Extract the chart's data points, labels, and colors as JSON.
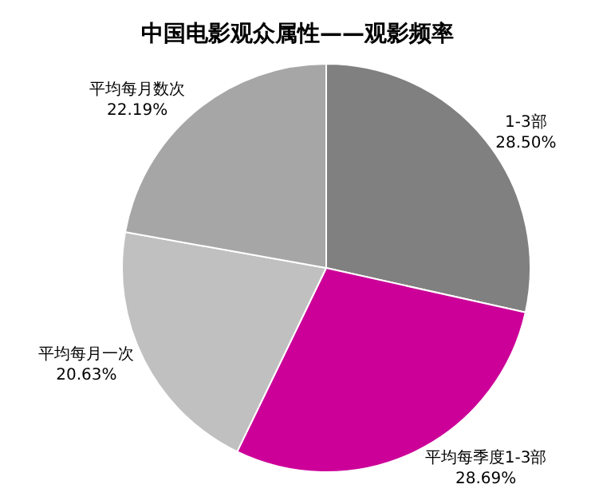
{
  "chart_data": {
    "type": "pie",
    "title": "中国电影观众属性——观影频率",
    "categories": [
      "1-3部",
      "平均每季度1-3部",
      "平均每月一次",
      "平均每月数次"
    ],
    "values": [
      28.5,
      28.69,
      20.63,
      22.19
    ],
    "value_labels": [
      "28.50%",
      "28.69%",
      "20.63%",
      "22.19%"
    ],
    "colors": [
      "#808080",
      "#cc0099",
      "#c0c0c0",
      "#a6a6a6"
    ],
    "legend": false
  }
}
